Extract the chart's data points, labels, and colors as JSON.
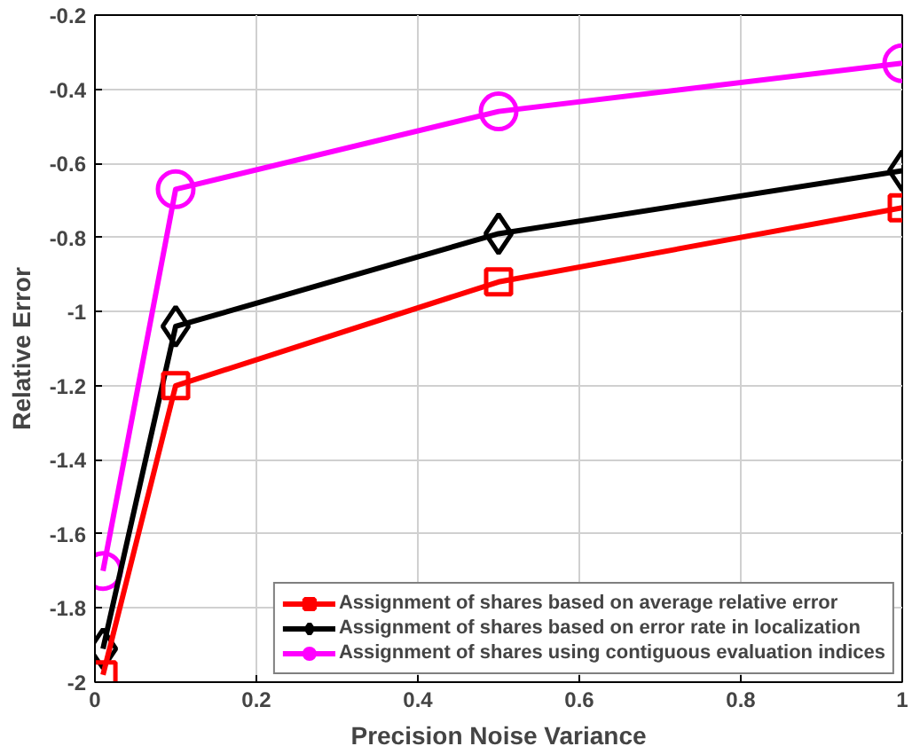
{
  "chart_data": {
    "type": "line",
    "xlabel": "Precision Noise Variance",
    "ylabel": "Relative Error",
    "x": [
      0.01,
      0.1,
      0.5,
      1
    ],
    "series": [
      {
        "name": "Assignment of shares based on average relative error",
        "color": "#ff0000",
        "marker": "square",
        "values": [
          -1.98,
          -1.2,
          -0.92,
          -0.72
        ]
      },
      {
        "name": "Assignment of shares based on error rate in localization",
        "color": "#000000",
        "marker": "diamond",
        "values": [
          -1.91,
          -1.04,
          -0.79,
          -0.62
        ]
      },
      {
        "name": "Assignment of shares using contiguous evaluation indices",
        "color": "#ff00ff",
        "marker": "circle",
        "values": [
          -1.7,
          -0.67,
          -0.46,
          -0.33
        ]
      }
    ],
    "xlim": [
      0,
      1
    ],
    "ylim": [
      -2,
      -0.2
    ],
    "xticks": [
      0,
      0.2,
      0.4,
      0.6,
      0.8,
      1
    ],
    "yticks": [
      -2,
      -1.8,
      -1.6,
      -1.4,
      -1.2,
      -1,
      -0.8,
      -0.6,
      -0.4,
      -0.2
    ],
    "grid": true,
    "legend": "bottom right",
    "line_style": "solid"
  }
}
